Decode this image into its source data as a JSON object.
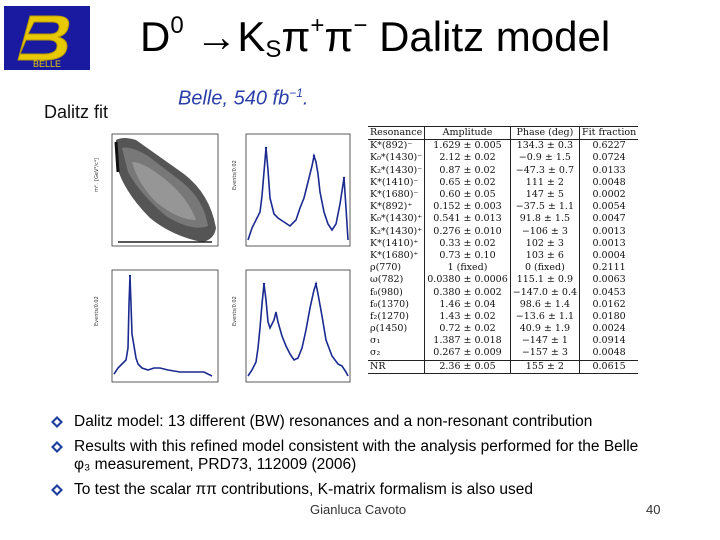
{
  "logo": {
    "text": "BELLE",
    "icon": "belle-logo"
  },
  "title": {
    "prefix": "D",
    "superscript": "0",
    "arrow": " →K",
    "sub": "S",
    "pi1": "π",
    "sup1": "+",
    "pi2": "π",
    "sup2": "−",
    "suffix": " Dalitz model"
  },
  "dalitz_fit_label": "Dalitz fit",
  "belle_label": {
    "text": "Belle, 540 fb",
    "sup": "−1",
    "tail": "."
  },
  "table": {
    "headers": [
      "Resonance",
      "Amplitude",
      "Phase (deg)",
      "Fit fraction"
    ],
    "rows": [
      [
        "K*(892)⁻",
        "1.629 ± 0.005",
        "134.3 ± 0.3",
        "0.6227"
      ],
      [
        "K₀*(1430)⁻",
        "2.12 ± 0.02",
        "−0.9 ± 1.5",
        "0.0724"
      ],
      [
        "K₂*(1430)⁻",
        "0.87 ± 0.02",
        "−47.3 ± 0.7",
        "0.0133"
      ],
      [
        "K*(1410)⁻",
        "0.65 ± 0.02",
        "111 ± 2",
        "0.0048"
      ],
      [
        "K*(1680)⁻",
        "0.60 ± 0.05",
        "147 ± 5",
        "0.0002"
      ],
      [
        "K*(892)⁺",
        "0.152 ± 0.003",
        "−37.5 ± 1.1",
        "0.0054"
      ],
      [
        "K₀*(1430)⁺",
        "0.541 ± 0.013",
        "91.8 ± 1.5",
        "0.0047"
      ],
      [
        "K₂*(1430)⁺",
        "0.276 ± 0.010",
        "−106 ± 3",
        "0.0013"
      ],
      [
        "K*(1410)⁺",
        "0.33 ± 0.02",
        "102 ± 3",
        "0.0013"
      ],
      [
        "K*(1680)⁺",
        "0.73 ± 0.10",
        "103 ± 6",
        "0.0004"
      ],
      [
        "ρ(770)",
        "1 (fixed)",
        "0 (fixed)",
        "0.2111"
      ],
      [
        "ω(782)",
        "0.0380 ± 0.0006",
        "115.1 ± 0.9",
        "0.0063"
      ],
      [
        "f₀(980)",
        "0.380 ± 0.002",
        "−147.0 ± 0.4",
        "0.0453"
      ],
      [
        "f₀(1370)",
        "1.46 ± 0.04",
        "98.6 ± 1.4",
        "0.0162"
      ],
      [
        "f₂(1270)",
        "1.43 ± 0.02",
        "−13.6 ± 1.1",
        "0.0180"
      ],
      [
        "ρ(1450)",
        "0.72 ± 0.02",
        "40.9 ± 1.9",
        "0.0024"
      ],
      [
        "σ₁",
        "1.387 ± 0.018",
        "−147 ± 1",
        "0.0914"
      ],
      [
        "σ₂",
        "0.267 ± 0.009",
        "−157 ± 3",
        "0.0048"
      ],
      [
        "NR",
        "2.36 ± 0.05",
        "155 ± 2",
        "0.0615"
      ]
    ]
  },
  "bullets": [
    "Dalitz model: 13 different (BW) resonances and a non-resonant contribution",
    "Results with this refined model consistent with the analysis performed for the Belle φ₃ measurement, PRD73, 112009 (2006)",
    "To test the scalar ππ contributions, K-matrix formalism is also used"
  ],
  "bullet_icon": "diamond-bullet-icon",
  "footer": {
    "author": "Gianluca Cavoto",
    "page": "40"
  },
  "colors": {
    "title_blue": "#2b3fa8",
    "bullet_blue": "#2040a0",
    "logo_bg": "#1a1aa0",
    "logo_gold": "#e8c800"
  }
}
